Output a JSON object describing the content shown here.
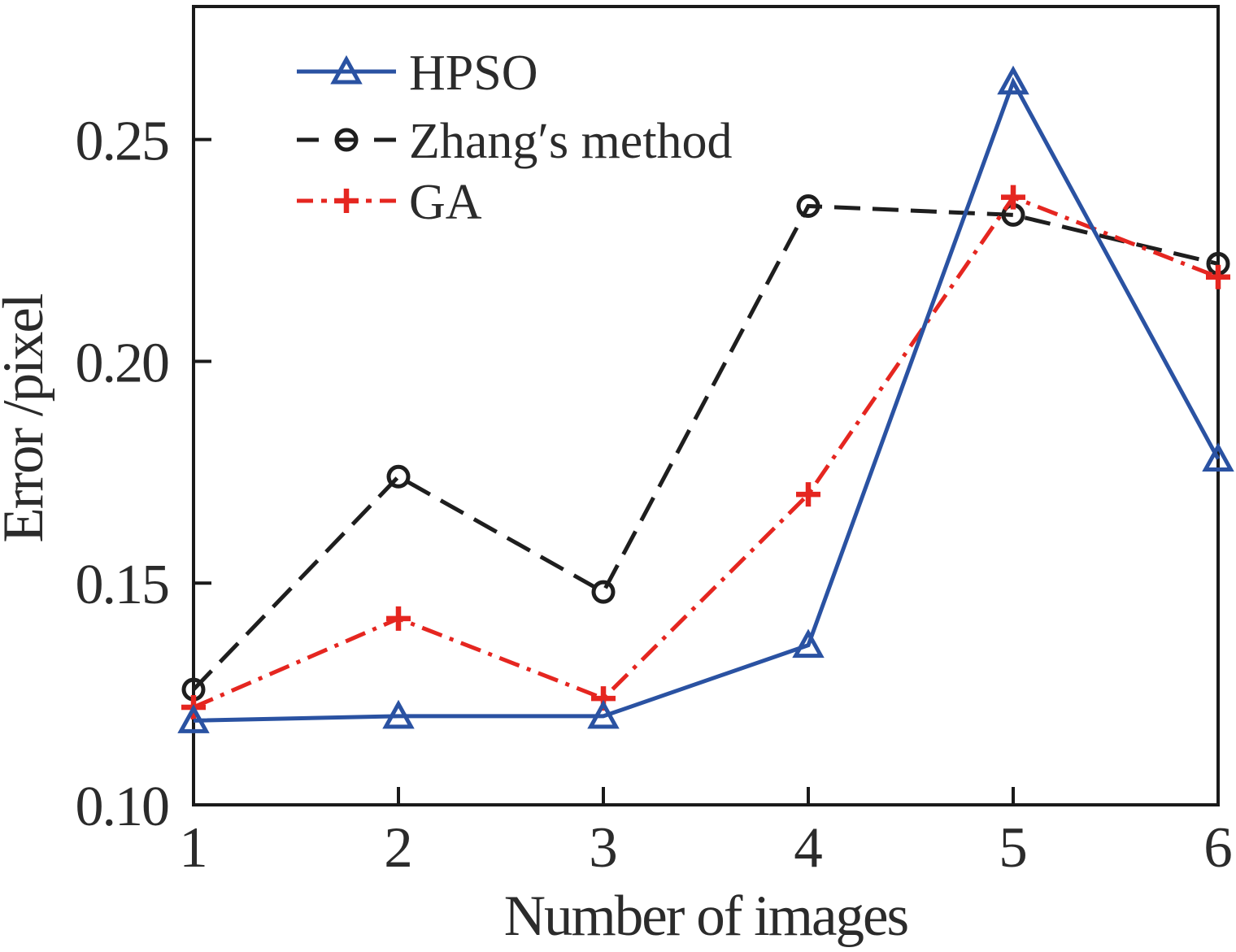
{
  "chart_data": {
    "type": "line",
    "title": "",
    "xlabel": "Number of images",
    "ylabel": "Error /pixel",
    "x": [
      1,
      2,
      3,
      4,
      5,
      6
    ],
    "xlim": [
      1,
      6
    ],
    "ylim": [
      0.1,
      0.28
    ],
    "xticks": [
      "1",
      "2",
      "3",
      "4",
      "5",
      "6"
    ],
    "yticks": [
      0.1,
      0.15,
      0.2,
      0.25
    ],
    "ytick_labels": [
      "0.10",
      "0.15",
      "0.20",
      "0.25"
    ],
    "grid": false,
    "legend_position": "upper-left",
    "axis_color": "#1a1a1a",
    "text_color": "#2b2b2b",
    "series": [
      {
        "name": "HPSO",
        "color": "#2a52a2",
        "linestyle": "solid",
        "marker": "triangle-up-open",
        "values": [
          0.119,
          0.12,
          0.12,
          0.136,
          0.263,
          0.178
        ]
      },
      {
        "name": "Zhang′s method",
        "color": "#1e1e1e",
        "linestyle": "dashed",
        "marker": "circle-open",
        "values": [
          0.126,
          0.174,
          0.148,
          0.235,
          0.233,
          0.222
        ]
      },
      {
        "name": "GA",
        "color": "#e52620",
        "linestyle": "dashdot",
        "marker": "plus",
        "values": [
          0.122,
          0.142,
          0.124,
          0.17,
          0.237,
          0.219
        ]
      }
    ]
  }
}
